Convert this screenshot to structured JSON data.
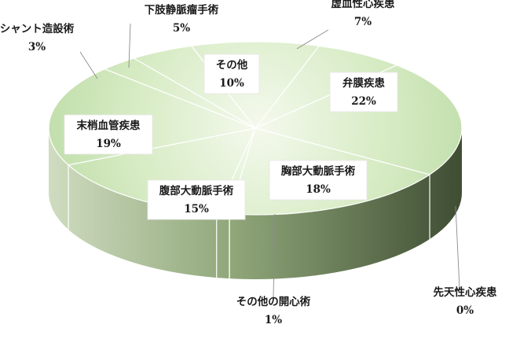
{
  "chart_data": {
    "type": "pie",
    "style": "3d",
    "title": "",
    "slices": [
      {
        "label": "虚血性心疾患",
        "value": 7,
        "value_label": "7%"
      },
      {
        "label": "弁膜疾患",
        "value": 22,
        "value_label": "22%"
      },
      {
        "label": "胸部大動脈手術",
        "value": 18,
        "value_label": "18%"
      },
      {
        "label": "先天性心疾患",
        "value": 0,
        "value_label": "0%"
      },
      {
        "label": "その他の開心術",
        "value": 1,
        "value_label": "1%"
      },
      {
        "label": "腹部大動脈手術",
        "value": 15,
        "value_label": "15%"
      },
      {
        "label": "末梢血管疾患",
        "value": 19,
        "value_label": "19%"
      },
      {
        "label": "シャント造設術",
        "value": 3,
        "value_label": "3%"
      },
      {
        "label": "下肢静脈瘤手術",
        "value": 5,
        "value_label": "5%"
      },
      {
        "label": "その他",
        "value": 10,
        "value_label": "10%"
      }
    ],
    "colors": {
      "top_light": "#f4f9ed",
      "top_mid": "#d6ebc3",
      "top_dark": "#bcdba6",
      "side_light": "#cfdcc0",
      "side_mid": "#8fa679",
      "side_dark": "#3f4d33",
      "separator": "#ffffff"
    }
  }
}
